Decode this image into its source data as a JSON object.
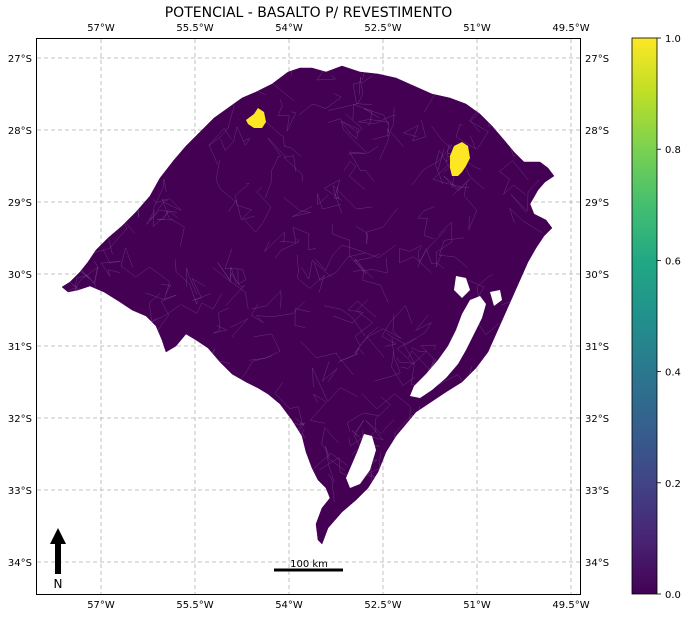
{
  "title": "POTENCIAL - BASALTO P/ REVESTIMENTO",
  "lon_ticks": [
    "57°W",
    "55.5°W",
    "54°W",
    "52.5°W",
    "51°W",
    "49.5°W"
  ],
  "lat_ticks": [
    "27°S",
    "28°S",
    "29°S",
    "30°S",
    "31°S",
    "32°S",
    "33°S",
    "34°S"
  ],
  "colorbar": {
    "ticks": [
      "1.0",
      "0.8",
      "0.6",
      "0.4",
      "0.2",
      "0.0"
    ],
    "colormap": "viridis"
  },
  "scale_bar": {
    "label": "100 km"
  },
  "north_arrow": {
    "label": "N"
  },
  "colors": {
    "low": "#440154",
    "high": "#fde725",
    "grid": "#b0b0b0"
  },
  "chart_data": {
    "type": "heatmap",
    "title": "POTENCIAL - BASALTO P/ REVESTIMENTO",
    "xlim": [
      -58,
      -49.25
    ],
    "ylim": [
      -34.45,
      -26.7
    ],
    "value_range": [
      0,
      1
    ],
    "grid": true,
    "legend": "colorbar-right",
    "highlighted_regions": [
      {
        "value": 1.0,
        "lon": -54.5,
        "lat": -27.9
      },
      {
        "value": 1.0,
        "lon": -51.3,
        "lat": -28.4
      }
    ],
    "base_value": 0.0
  }
}
